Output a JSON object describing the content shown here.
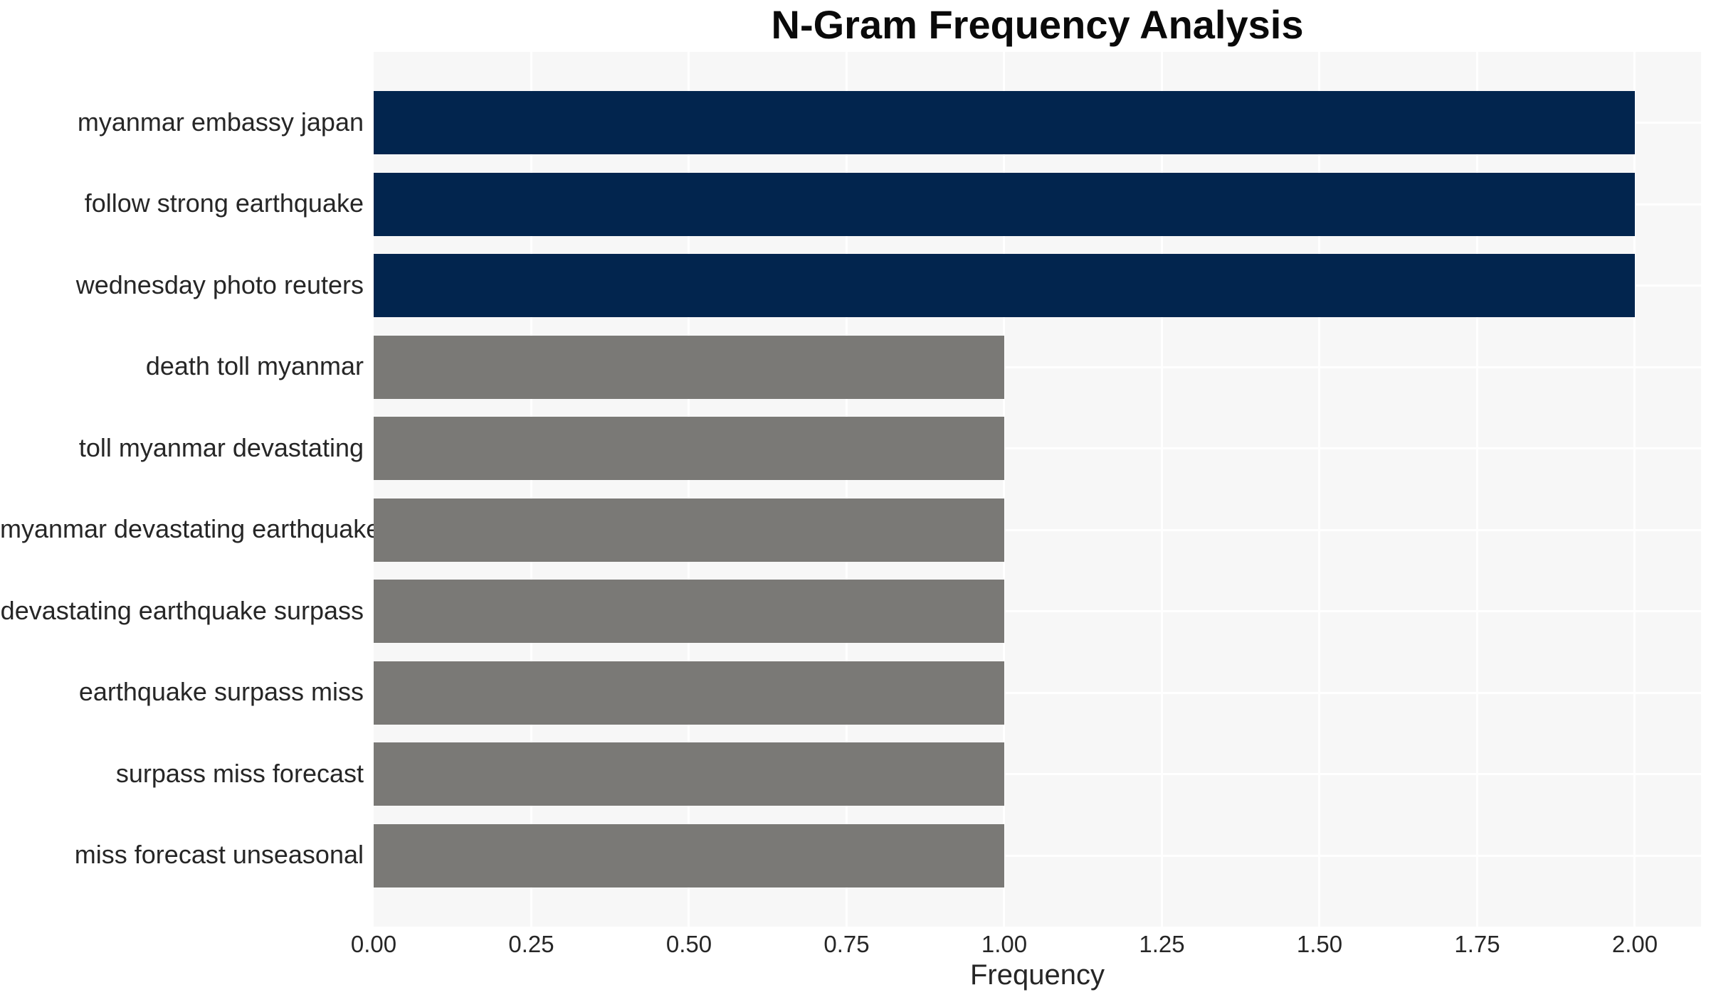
{
  "chart_data": {
    "type": "bar",
    "orientation": "horizontal",
    "title": "N-Gram Frequency Analysis",
    "xlabel": "Frequency",
    "ylabel": "",
    "categories": [
      "myanmar embassy japan",
      "follow strong earthquake",
      "wednesday photo reuters",
      "death toll myanmar",
      "toll myanmar devastating",
      "myanmar devastating earthquake",
      "devastating earthquake surpass",
      "earthquake surpass miss",
      "surpass miss forecast",
      "miss forecast unseasonal"
    ],
    "values": [
      2,
      2,
      2,
      1,
      1,
      1,
      1,
      1,
      1,
      1
    ],
    "bar_colors": [
      "#02254e",
      "#02254e",
      "#02254e",
      "#7a7976",
      "#7a7976",
      "#7a7976",
      "#7a7976",
      "#7a7976",
      "#7a7976",
      "#7a7976"
    ],
    "x_ticks": [
      "0.00",
      "0.25",
      "0.50",
      "0.75",
      "1.00",
      "1.25",
      "1.50",
      "1.75",
      "2.00"
    ],
    "x_tick_values": [
      0,
      0.25,
      0.5,
      0.75,
      1.0,
      1.25,
      1.5,
      1.75,
      2.0
    ],
    "xlim": [
      0,
      2.105
    ],
    "grid": true,
    "legend": false,
    "colors": {
      "bar_high": "#02254e",
      "bar_low": "#7a7976",
      "plot_background": "#f7f7f7",
      "gridline": "#ffffff",
      "tick_text": "#262626",
      "title_text": "#0a0a0a"
    }
  }
}
